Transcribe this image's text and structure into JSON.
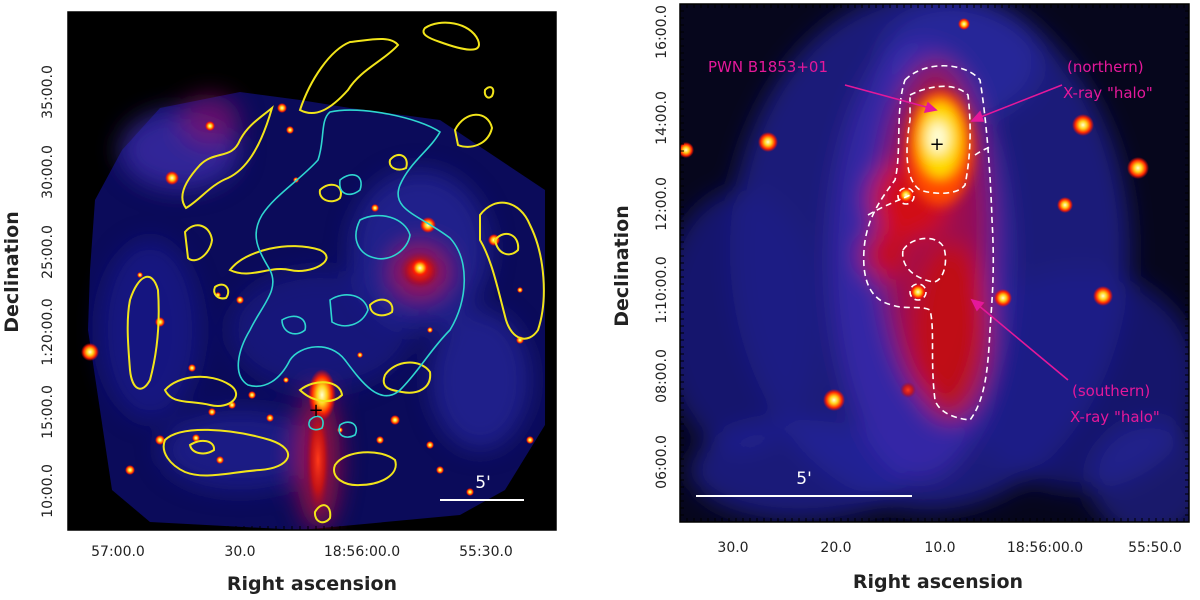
{
  "left_panel": {
    "xlabel": "Right ascension",
    "ylabel": "Declination",
    "x_ticks": [
      "57:00.0",
      "30.0",
      "18:56:00.0",
      "55:30.0"
    ],
    "y_ticks": [
      "35:00.0",
      "30:00.0",
      "25:00.0",
      "1:20:00.0",
      "15:00.0",
      "10:00.0"
    ],
    "scale_bar_label": "5'",
    "marker_symbol": "+"
  },
  "right_panel": {
    "xlabel": "Right ascension",
    "ylabel": "Declination",
    "x_ticks": [
      "30.0",
      "20.0",
      "10.0",
      "18:56:00.0",
      "55:50.0"
    ],
    "y_ticks": [
      "16:00.0",
      "14:00.0",
      "12:00.0",
      "1:10:00.0",
      "08:00.0",
      "06:00.0"
    ],
    "scale_bar_label": "5'",
    "marker_symbol": "+",
    "annotations": {
      "pwn": "PWN B1853+01",
      "northern_line1": "(northern)",
      "northern_line2": "X-ray \"halo\"",
      "southern_line1": "(southern)",
      "southern_line2": "X-ray \"halo\""
    }
  },
  "colors": {
    "background": "#05051f",
    "contour_radio": "#f2e51a",
    "contour_xray": "#2fd6d0",
    "annotation": "#e4189a",
    "region_outline": "#ffffff"
  }
}
